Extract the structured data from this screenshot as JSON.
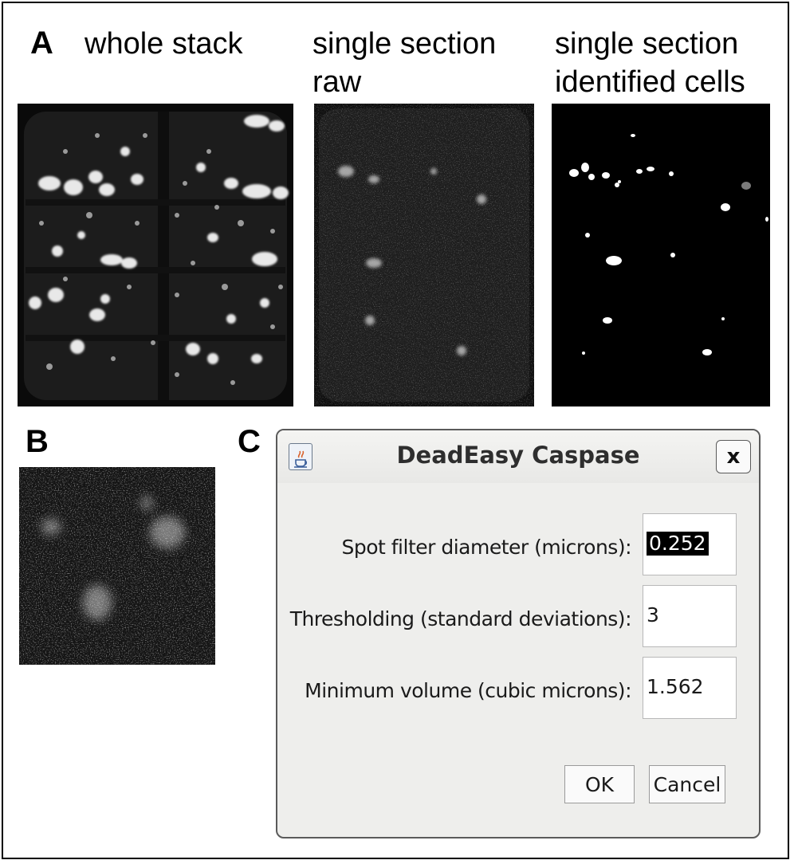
{
  "panels": {
    "a": {
      "letter": "A",
      "captions": {
        "whole_stack": "whole stack",
        "single_raw_line1": "single section",
        "single_raw_line2": "raw",
        "single_cells_line1": "single section",
        "single_cells_line2": "identified cells"
      }
    },
    "b": {
      "letter": "B"
    },
    "c": {
      "letter": "C"
    }
  },
  "dialog": {
    "title": "DeadEasy Caspase",
    "icon": "java-cup-icon",
    "close_label": "x",
    "fields": [
      {
        "label": "Spot filter diameter (microns):",
        "value": "0.252",
        "selected": true
      },
      {
        "label": "Thresholding (standard deviations):",
        "value": "3",
        "selected": false
      },
      {
        "label": "Minimum volume (cubic microns):",
        "value": "1.562",
        "selected": false
      }
    ],
    "ok_label": "OK",
    "cancel_label": "Cancel"
  },
  "colors": {
    "selection_bg": "#000000",
    "dialog_bg": "#eeeeec"
  }
}
